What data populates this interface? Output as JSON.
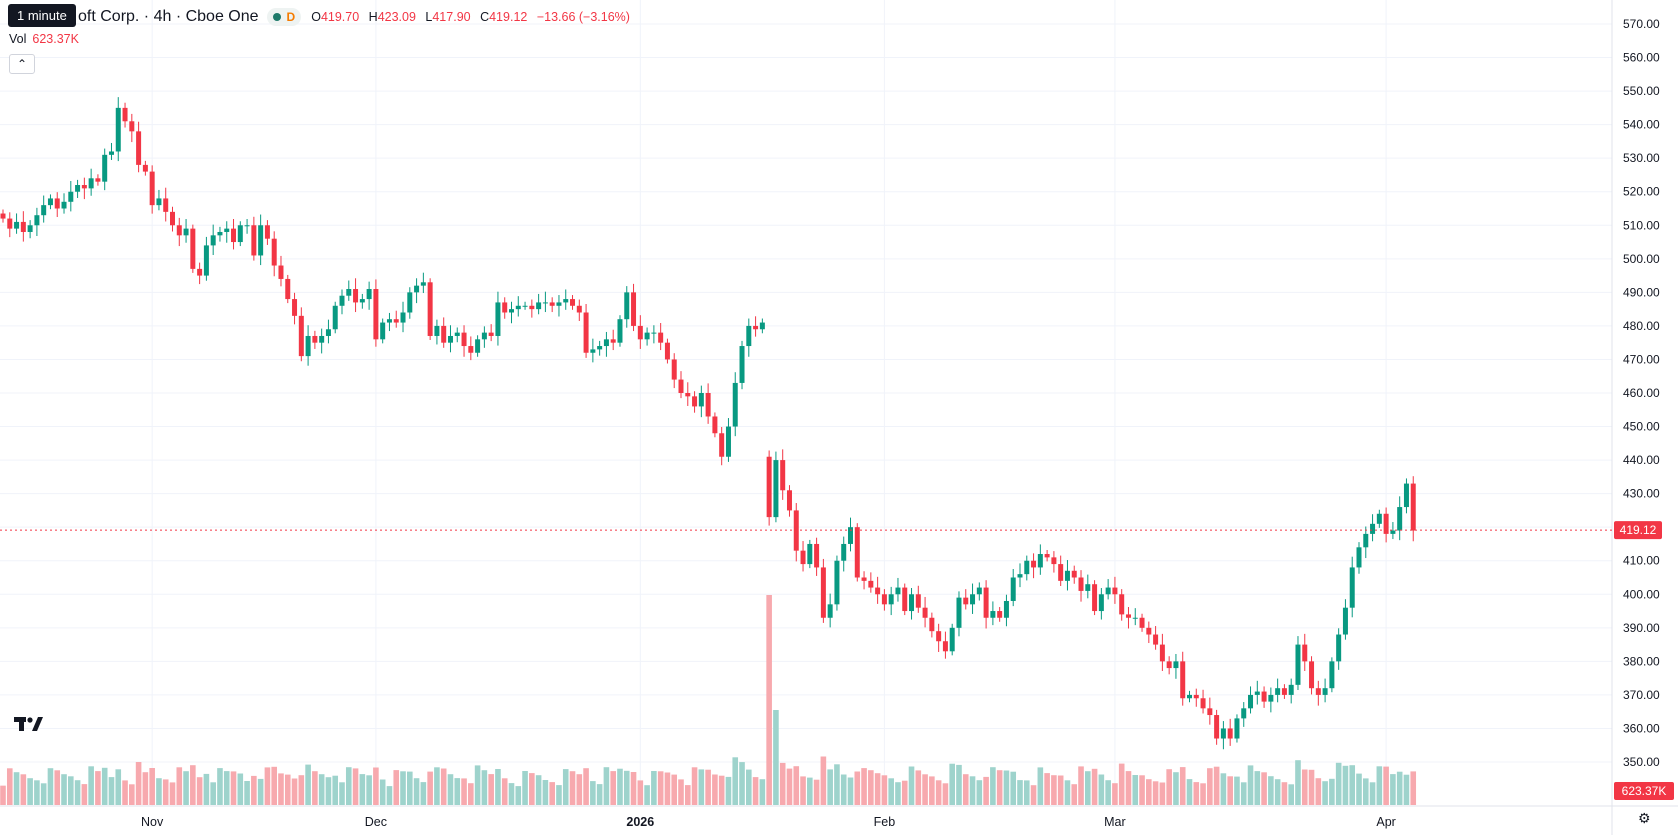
{
  "header": {
    "tooltip": "1 minute",
    "symbol_title": "oft Corp. · 4h · Cboe One",
    "interval_badge": "D",
    "open_label": "O",
    "open": "419.70",
    "high_label": "H",
    "high": "423.09",
    "low_label": "L",
    "low": "417.90",
    "close_label": "C",
    "close": "419.12",
    "change": "−13.66 (−3.16%)",
    "collapse_icon": "chevron-up-icon"
  },
  "volume_legend": {
    "label": "Vol",
    "value": "623.37K"
  },
  "price_axis": {
    "ticks": [
      "570.00",
      "560.00",
      "550.00",
      "540.00",
      "530.00",
      "520.00",
      "510.00",
      "500.00",
      "490.00",
      "480.00",
      "470.00",
      "460.00",
      "450.00",
      "440.00",
      "430.00",
      "420.00",
      "410.00",
      "400.00",
      "390.00",
      "380.00",
      "370.00",
      "360.00",
      "350.00"
    ],
    "last_price_label": "419.12",
    "volume_label": "623.37K"
  },
  "time_axis": {
    "labels": [
      "Nov",
      "Dec",
      "2026",
      "Feb",
      "Mar",
      "Apr"
    ]
  },
  "colors": {
    "up": "#089981",
    "down": "#f23645",
    "up_volume": "#9ed3cc",
    "down_volume": "#f7a9ae",
    "grid": "#f0f3fa",
    "axis_text": "#131722"
  },
  "icons": {
    "logo": "tradingview-logo-icon",
    "settings": "settings-icon"
  },
  "chart_data": {
    "type": "candlestick",
    "timeframe": "4h",
    "ylim": [
      350,
      575
    ],
    "last_price": 419.12,
    "x_labels": [
      {
        "label": "Nov",
        "index": 22
      },
      {
        "label": "Dec",
        "index": 55
      },
      {
        "label": "2026",
        "index": 94
      },
      {
        "label": "Feb",
        "index": 130
      },
      {
        "label": "Mar",
        "index": 164
      },
      {
        "label": "Apr",
        "index": 204
      }
    ],
    "closes": [
      512,
      509,
      511,
      508,
      510,
      513,
      516,
      518,
      515,
      517,
      520,
      522,
      521,
      524,
      523,
      531,
      532,
      545,
      541,
      538,
      528,
      526,
      516,
      518,
      514,
      510,
      507,
      509,
      497,
      495,
      504,
      507,
      508,
      509,
      505,
      510,
      510,
      501,
      510,
      506,
      498,
      494,
      488,
      483,
      471,
      477,
      475,
      477,
      479,
      486,
      489,
      491,
      487,
      488,
      491,
      476,
      481,
      482,
      481,
      484,
      490,
      492,
      493,
      477,
      480,
      475,
      477,
      478,
      474,
      472,
      476,
      478,
      477,
      487,
      484,
      485,
      486,
      486,
      485,
      487,
      487,
      486,
      487,
      488,
      486,
      484,
      472,
      473,
      474,
      476,
      475,
      482,
      490,
      480,
      476,
      478,
      478,
      475,
      470,
      464,
      460,
      459,
      456,
      460,
      453,
      448,
      441,
      450,
      463,
      474,
      480,
      479,
      481,
      423,
      440,
      431,
      425,
      413,
      409,
      415,
      408,
      393,
      397,
      410,
      415,
      420,
      405,
      404,
      402,
      400,
      397,
      400,
      402,
      395,
      400,
      396,
      393,
      389,
      386,
      383,
      390,
      399,
      397,
      400,
      402,
      393,
      395,
      393,
      398,
      405,
      406,
      410,
      408,
      412,
      411,
      409,
      404,
      407,
      405,
      401,
      403,
      395,
      400,
      402,
      400,
      394,
      393,
      393,
      390,
      388,
      385,
      380,
      378,
      380,
      369,
      370,
      369,
      366,
      364,
      357,
      360,
      357,
      363,
      366,
      370,
      371,
      368,
      370,
      372,
      370,
      373,
      385,
      380,
      372,
      370,
      372,
      380,
      388,
      396,
      408,
      414,
      418,
      421,
      424,
      418,
      419,
      426,
      433,
      419
    ]
  }
}
